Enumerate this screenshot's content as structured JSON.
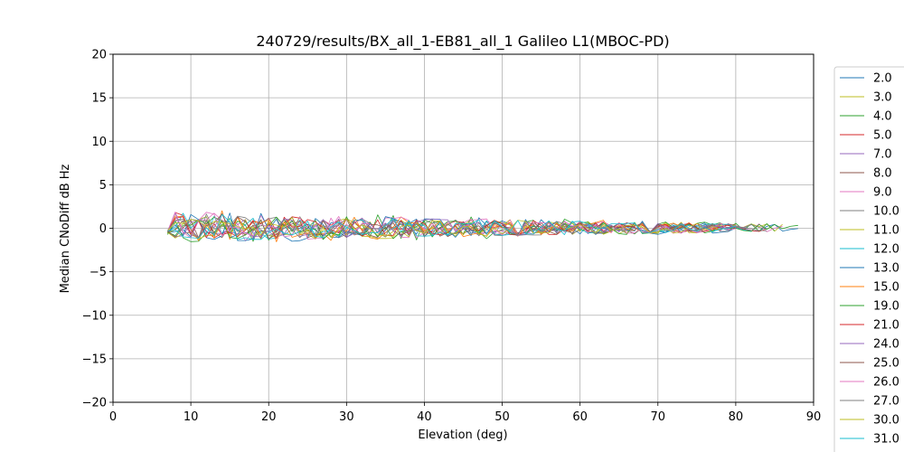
{
  "chart_data": {
    "type": "line",
    "title": "240729/results/BX_all_1-EB81_all_1 Galileo L1(MBOC-PD)",
    "xlabel": "Elevation (deg)",
    "ylabel": "Median CNoDiff dB Hz",
    "xlim": [
      0,
      90
    ],
    "ylim": [
      -20,
      20
    ],
    "xticks": [
      0,
      10,
      20,
      30,
      40,
      50,
      60,
      70,
      80,
      90
    ],
    "yticks": [
      -20,
      -15,
      -10,
      -5,
      0,
      5,
      10,
      15,
      20
    ],
    "grid": true,
    "legend_position": "right",
    "series": [
      {
        "name": "2.0",
        "color": "#1f77b4",
        "x_range": [
          7,
          88
        ],
        "amplitude": 0.9,
        "seed": 11
      },
      {
        "name": "3.0",
        "color": "#bcbd22",
        "x_range": [
          7,
          86
        ],
        "amplitude": 1.0,
        "seed": 23
      },
      {
        "name": "4.0",
        "color": "#2ca02c",
        "x_range": [
          7,
          85
        ],
        "amplitude": 1.2,
        "seed": 37
      },
      {
        "name": "5.0",
        "color": "#d62728",
        "x_range": [
          7,
          84
        ],
        "amplitude": 0.9,
        "seed": 41
      },
      {
        "name": "7.0",
        "color": "#9467bd",
        "x_range": [
          7,
          82
        ],
        "amplitude": 0.9,
        "seed": 53
      },
      {
        "name": "8.0",
        "color": "#8c564b",
        "x_range": [
          7,
          80
        ],
        "amplitude": 0.9,
        "seed": 67
      },
      {
        "name": "9.0",
        "color": "#e377c2",
        "x_range": [
          7,
          86
        ],
        "amplitude": 1.0,
        "seed": 71
      },
      {
        "name": "10.0",
        "color": "#7f7f7f",
        "x_range": [
          7,
          84
        ],
        "amplitude": 0.9,
        "seed": 83
      },
      {
        "name": "11.0",
        "color": "#bcbd22",
        "x_range": [
          7,
          80
        ],
        "amplitude": 1.0,
        "seed": 97
      },
      {
        "name": "12.0",
        "color": "#17becf",
        "x_range": [
          7,
          82
        ],
        "amplitude": 0.9,
        "seed": 101
      },
      {
        "name": "13.0",
        "color": "#1f77b4",
        "x_range": [
          7,
          80
        ],
        "amplitude": 1.1,
        "seed": 113
      },
      {
        "name": "15.0",
        "color": "#ff7f0e",
        "x_range": [
          7,
          78
        ],
        "amplitude": 1.1,
        "seed": 127
      },
      {
        "name": "19.0",
        "color": "#2ca02c",
        "x_range": [
          7,
          88
        ],
        "amplitude": 1.0,
        "seed": 131
      },
      {
        "name": "21.0",
        "color": "#d62728",
        "x_range": [
          7,
          80
        ],
        "amplitude": 0.9,
        "seed": 149
      },
      {
        "name": "24.0",
        "color": "#9467bd",
        "x_range": [
          7,
          82
        ],
        "amplitude": 0.9,
        "seed": 151
      },
      {
        "name": "25.0",
        "color": "#8c564b",
        "x_range": [
          7,
          78
        ],
        "amplitude": 0.9,
        "seed": 163
      },
      {
        "name": "26.0",
        "color": "#e377c2",
        "x_range": [
          7,
          80
        ],
        "amplitude": 1.0,
        "seed": 173
      },
      {
        "name": "27.0",
        "color": "#7f7f7f",
        "x_range": [
          7,
          84
        ],
        "amplitude": 0.9,
        "seed": 181
      },
      {
        "name": "30.0",
        "color": "#bcbd22",
        "x_range": [
          7,
          78
        ],
        "amplitude": 0.9,
        "seed": 191
      },
      {
        "name": "31.0",
        "color": "#17becf",
        "x_range": [
          7,
          80
        ],
        "amplitude": 0.9,
        "seed": 199
      }
    ]
  }
}
